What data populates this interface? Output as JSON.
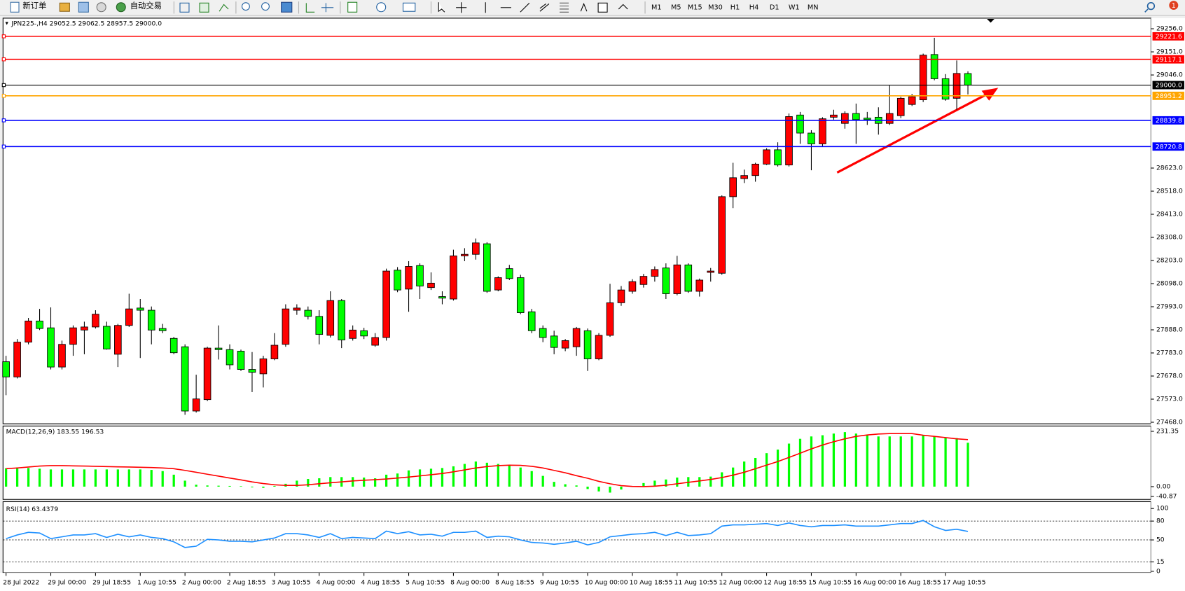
{
  "toolbar": {
    "buttons": [
      "新订单",
      "自动交易"
    ],
    "timeframes": [
      "M1",
      "M5",
      "M15",
      "M30",
      "H1",
      "H4",
      "D1",
      "W1",
      "MN"
    ],
    "badge": "1"
  },
  "chart_data": [
    {
      "type": "candlestick",
      "title": "JPN225-,H4  29052.5 29062.5 28957.5 29000.0",
      "categories": [
        "28 Jul 2022",
        null,
        null,
        null,
        "29 Jul 00:00",
        null,
        null,
        null,
        "29 Jul 18:55",
        null,
        null,
        null,
        "1 Aug 10:55",
        null,
        null,
        null,
        "2 Aug 00:00",
        null,
        null,
        null,
        "2 Aug 18:55",
        null,
        null,
        null,
        "3 Aug 10:55",
        null,
        null,
        null,
        "4 Aug 00:00",
        null,
        null,
        null,
        "4 Aug 18:55",
        null,
        null,
        null,
        "5 Aug 10:55",
        null,
        null,
        null,
        "8 Aug 00:00",
        null,
        null,
        null,
        "8 Aug 18:55",
        null,
        null,
        null,
        "9 Aug 10:55",
        null,
        null,
        null,
        "10 Aug 00:00",
        null,
        null,
        null,
        "10 Aug 18:55",
        null,
        null,
        null,
        "11 Aug 10:55",
        null,
        null,
        null,
        "12 Aug 00:00",
        null,
        null,
        null,
        "12 Aug 18:55",
        null,
        null,
        null,
        "15 Aug 10:55",
        null,
        null,
        null,
        "16 Aug 00:00",
        null,
        null,
        null,
        "16 Aug 18:55",
        null,
        null,
        null,
        "17 Aug 10:55",
        null,
        null
      ],
      "open": [
        27743,
        27674,
        27832,
        27928,
        27897,
        27719,
        27822,
        27887,
        27901,
        27904,
        27777,
        27908,
        27987,
        27977,
        27894,
        27849,
        27811,
        27519,
        27571,
        27805,
        27798,
        27791,
        27708,
        27688,
        27756,
        27822,
        27977,
        27977,
        27949,
        27863,
        28021,
        27849,
        27884,
        27818,
        27853,
        28159,
        28073,
        28180,
        28080,
        28039,
        28028,
        28224,
        28231,
        28279,
        28069,
        28166,
        28125,
        27970,
        27894,
        27860,
        27805,
        27811,
        27884,
        27756,
        27863,
        28011,
        28063,
        28094,
        28131,
        28169,
        28052,
        28183,
        28063,
        28149,
        28145,
        28493,
        28575,
        28589,
        28641,
        28706,
        28637,
        28864,
        28782,
        28733,
        28854,
        28826,
        28871,
        28850,
        28854,
        28826,
        28861,
        28912,
        28933,
        29139,
        29029,
        28940,
        29052.5
      ],
      "high": [
        27770,
        27846,
        27942,
        27983,
        27990,
        27839,
        27908,
        27925,
        27977,
        27925,
        27915,
        28052,
        28028,
        27994,
        27915,
        27856,
        27822,
        27684,
        27811,
        27908,
        27822,
        27798,
        27787,
        27770,
        27873,
        28004,
        28004,
        27994,
        27977,
        28063,
        28028,
        27908,
        27897,
        27873,
        28166,
        28173,
        28200,
        28190,
        28149,
        28063,
        28252,
        28259,
        28303,
        28286,
        28131,
        28183,
        28138,
        27983,
        27908,
        27884,
        27846,
        27901,
        27894,
        27873,
        28097,
        28087,
        28118,
        28142,
        28176,
        28190,
        28224,
        28190,
        28121,
        28169,
        28499,
        28647,
        28616,
        28647,
        28713,
        28740,
        28871,
        28878,
        28795,
        28854,
        28888,
        28881,
        28916,
        28878,
        28899,
        28998,
        28947,
        28960,
        29143,
        29215,
        29050,
        29112,
        29062.5
      ],
      "low": [
        27591,
        27667,
        27822,
        27887,
        27708,
        27708,
        27770,
        27777,
        27894,
        27798,
        27719,
        27901,
        27760,
        27822,
        27873,
        27777,
        27502,
        27512,
        27564,
        27753,
        27708,
        27701,
        27605,
        27626,
        27750,
        27811,
        27956,
        27935,
        27822,
        27853,
        27805,
        27839,
        27846,
        27811,
        27839,
        28059,
        27970,
        28028,
        28069,
        28004,
        28021,
        28200,
        28207,
        28056,
        28063,
        28114,
        27959,
        27873,
        27832,
        27777,
        27791,
        27770,
        27701,
        27750,
        27856,
        27997,
        28052,
        28080,
        28107,
        28028,
        28045,
        28056,
        28039,
        28107,
        28138,
        28441,
        28555,
        28561,
        28637,
        28630,
        28630,
        28733,
        28613,
        28723,
        28843,
        28802,
        28733,
        28819,
        28775,
        28819,
        28850,
        28905,
        28923,
        29022,
        28929,
        28888,
        28957.5
      ],
      "close": [
        27674,
        27832,
        27928,
        27894,
        27719,
        27822,
        27897,
        27901,
        27959,
        27801,
        27908,
        27983,
        27977,
        27887,
        27884,
        27784,
        27519,
        27574,
        27805,
        27798,
        27729,
        27708,
        27695,
        27756,
        27818,
        27983,
        27987,
        27949,
        27867,
        28021,
        27842,
        27887,
        27860,
        27853,
        28155,
        28069,
        28176,
        28087,
        28100,
        28032,
        28224,
        28231,
        28283,
        28063,
        28125,
        28121,
        27966,
        27884,
        27853,
        27808,
        27839,
        27894,
        27756,
        27863,
        28011,
        28069,
        28107,
        28131,
        28162,
        28052,
        28183,
        28063,
        28114,
        28155,
        28493,
        28579,
        28589,
        28641,
        28706,
        28637,
        28857,
        28782,
        28733,
        28847,
        28864,
        28871,
        28843,
        28843,
        28826,
        28871,
        28940,
        28947,
        29136,
        29029,
        28936,
        29053,
        29000
      ],
      "up_color": "#ff0000",
      "down_color": "#00ff00",
      "grid": false,
      "ylim": [
        27468,
        29256
      ],
      "yticks": [
        {
          "value": 29256,
          "label": "29256.0"
        },
        {
          "value": 29151,
          "label": "29151.0"
        },
        {
          "value": 29046,
          "label": "29046.0"
        },
        {
          "value": 28623,
          "label": "28623.0"
        },
        {
          "value": 28518,
          "label": "28518.0"
        },
        {
          "value": 28413,
          "label": "28413.0"
        },
        {
          "value": 28308,
          "label": "28308.0"
        },
        {
          "value": 28203,
          "label": "28203.0"
        },
        {
          "value": 28098,
          "label": "28098.0"
        },
        {
          "value": 27993,
          "label": "27993.0"
        },
        {
          "value": 27888,
          "label": "27888.0"
        },
        {
          "value": 27783,
          "label": "27783.0"
        },
        {
          "value": 27678,
          "label": "27678.0"
        },
        {
          "value": 27573,
          "label": "27573.0"
        },
        {
          "value": 27468,
          "label": "27468.0"
        }
      ],
      "price_lines": [
        {
          "value": 29221.6,
          "label": "29221.6",
          "color": "#ff0000"
        },
        {
          "value": 29117.1,
          "label": "29117.1",
          "color": "#ff0000"
        },
        {
          "value": 29000,
          "label": "29000.0",
          "color": "#000000"
        },
        {
          "value": 28951.2,
          "label": "28951.2",
          "color": "#ffa500"
        },
        {
          "value": 28839.8,
          "label": "28839.8",
          "color": "#0000ff"
        },
        {
          "value": 28720.8,
          "label": "28720.8",
          "color": "#0000ff"
        }
      ]
    },
    {
      "type": "macd",
      "title": "MACD(12,26,9) 183.55 196.53",
      "histogram": [
        77,
        80,
        78,
        75,
        72,
        72,
        72,
        72,
        72,
        72,
        72,
        72,
        72,
        70,
        65,
        50,
        25,
        8,
        5,
        4,
        3,
        2,
        -3,
        -5,
        3,
        12,
        25,
        32,
        35,
        40,
        40,
        40,
        38,
        35,
        50,
        55,
        68,
        72,
        75,
        78,
        85,
        95,
        105,
        100,
        95,
        90,
        80,
        65,
        45,
        20,
        10,
        5,
        -10,
        -20,
        -25,
        -12,
        2,
        15,
        25,
        30,
        38,
        40,
        40,
        42,
        60,
        80,
        105,
        120,
        140,
        155,
        180,
        200,
        210,
        215,
        222,
        228,
        222,
        215,
        210,
        210,
        210,
        210,
        215,
        212,
        205,
        203,
        183.55
      ],
      "signal": [
        75,
        78,
        82,
        86,
        88,
        88,
        87,
        86,
        85,
        84,
        83,
        82,
        81,
        80,
        78,
        75,
        68,
        60,
        52,
        44,
        36,
        28,
        20,
        13,
        8,
        5,
        5,
        8,
        12,
        16,
        20,
        24,
        27,
        29,
        32,
        36,
        40,
        45,
        50,
        55,
        62,
        70,
        78,
        84,
        88,
        90,
        89,
        85,
        78,
        68,
        58,
        46,
        35,
        22,
        12,
        4,
        1,
        0,
        2,
        6,
        12,
        18,
        24,
        30,
        38,
        48,
        60,
        75,
        90,
        105,
        122,
        140,
        158,
        174,
        188,
        200,
        210,
        216,
        220,
        222,
        222,
        222,
        215,
        210,
        205,
        200,
        196.53
      ],
      "histogram_color": "#00ff00",
      "signal_color": "#ff0000",
      "ylim": [
        -40.87,
        231.35
      ],
      "yticks": [
        231.35,
        {
          "value": 0,
          "label": "0.00"
        },
        -40.87
      ]
    },
    {
      "type": "line",
      "title": "RSI(14) 63.4379",
      "values": [
        52,
        58,
        62,
        61,
        52,
        55,
        58,
        58,
        60,
        54,
        59,
        55,
        58,
        54,
        52,
        47,
        38,
        40,
        51,
        50,
        48,
        48,
        47,
        50,
        53,
        60,
        60,
        58,
        54,
        60,
        52,
        54,
        53,
        52,
        64,
        60,
        63,
        58,
        59,
        56,
        62,
        62,
        64,
        54,
        56,
        55,
        50,
        46,
        45,
        43,
        45,
        48,
        42,
        46,
        55,
        57,
        59,
        60,
        62,
        57,
        62,
        57,
        58,
        60,
        72,
        74,
        74,
        75,
        76,
        73,
        77,
        73,
        71,
        73,
        73,
        74,
        72,
        72,
        72,
        74,
        76,
        76,
        81,
        71,
        65,
        67,
        63.4379
      ],
      "color": "#1e90ff",
      "ylim": [
        0,
        100
      ],
      "yticks": [
        100,
        80,
        50,
        15,
        0
      ],
      "levels": [
        80,
        50,
        15
      ]
    }
  ]
}
